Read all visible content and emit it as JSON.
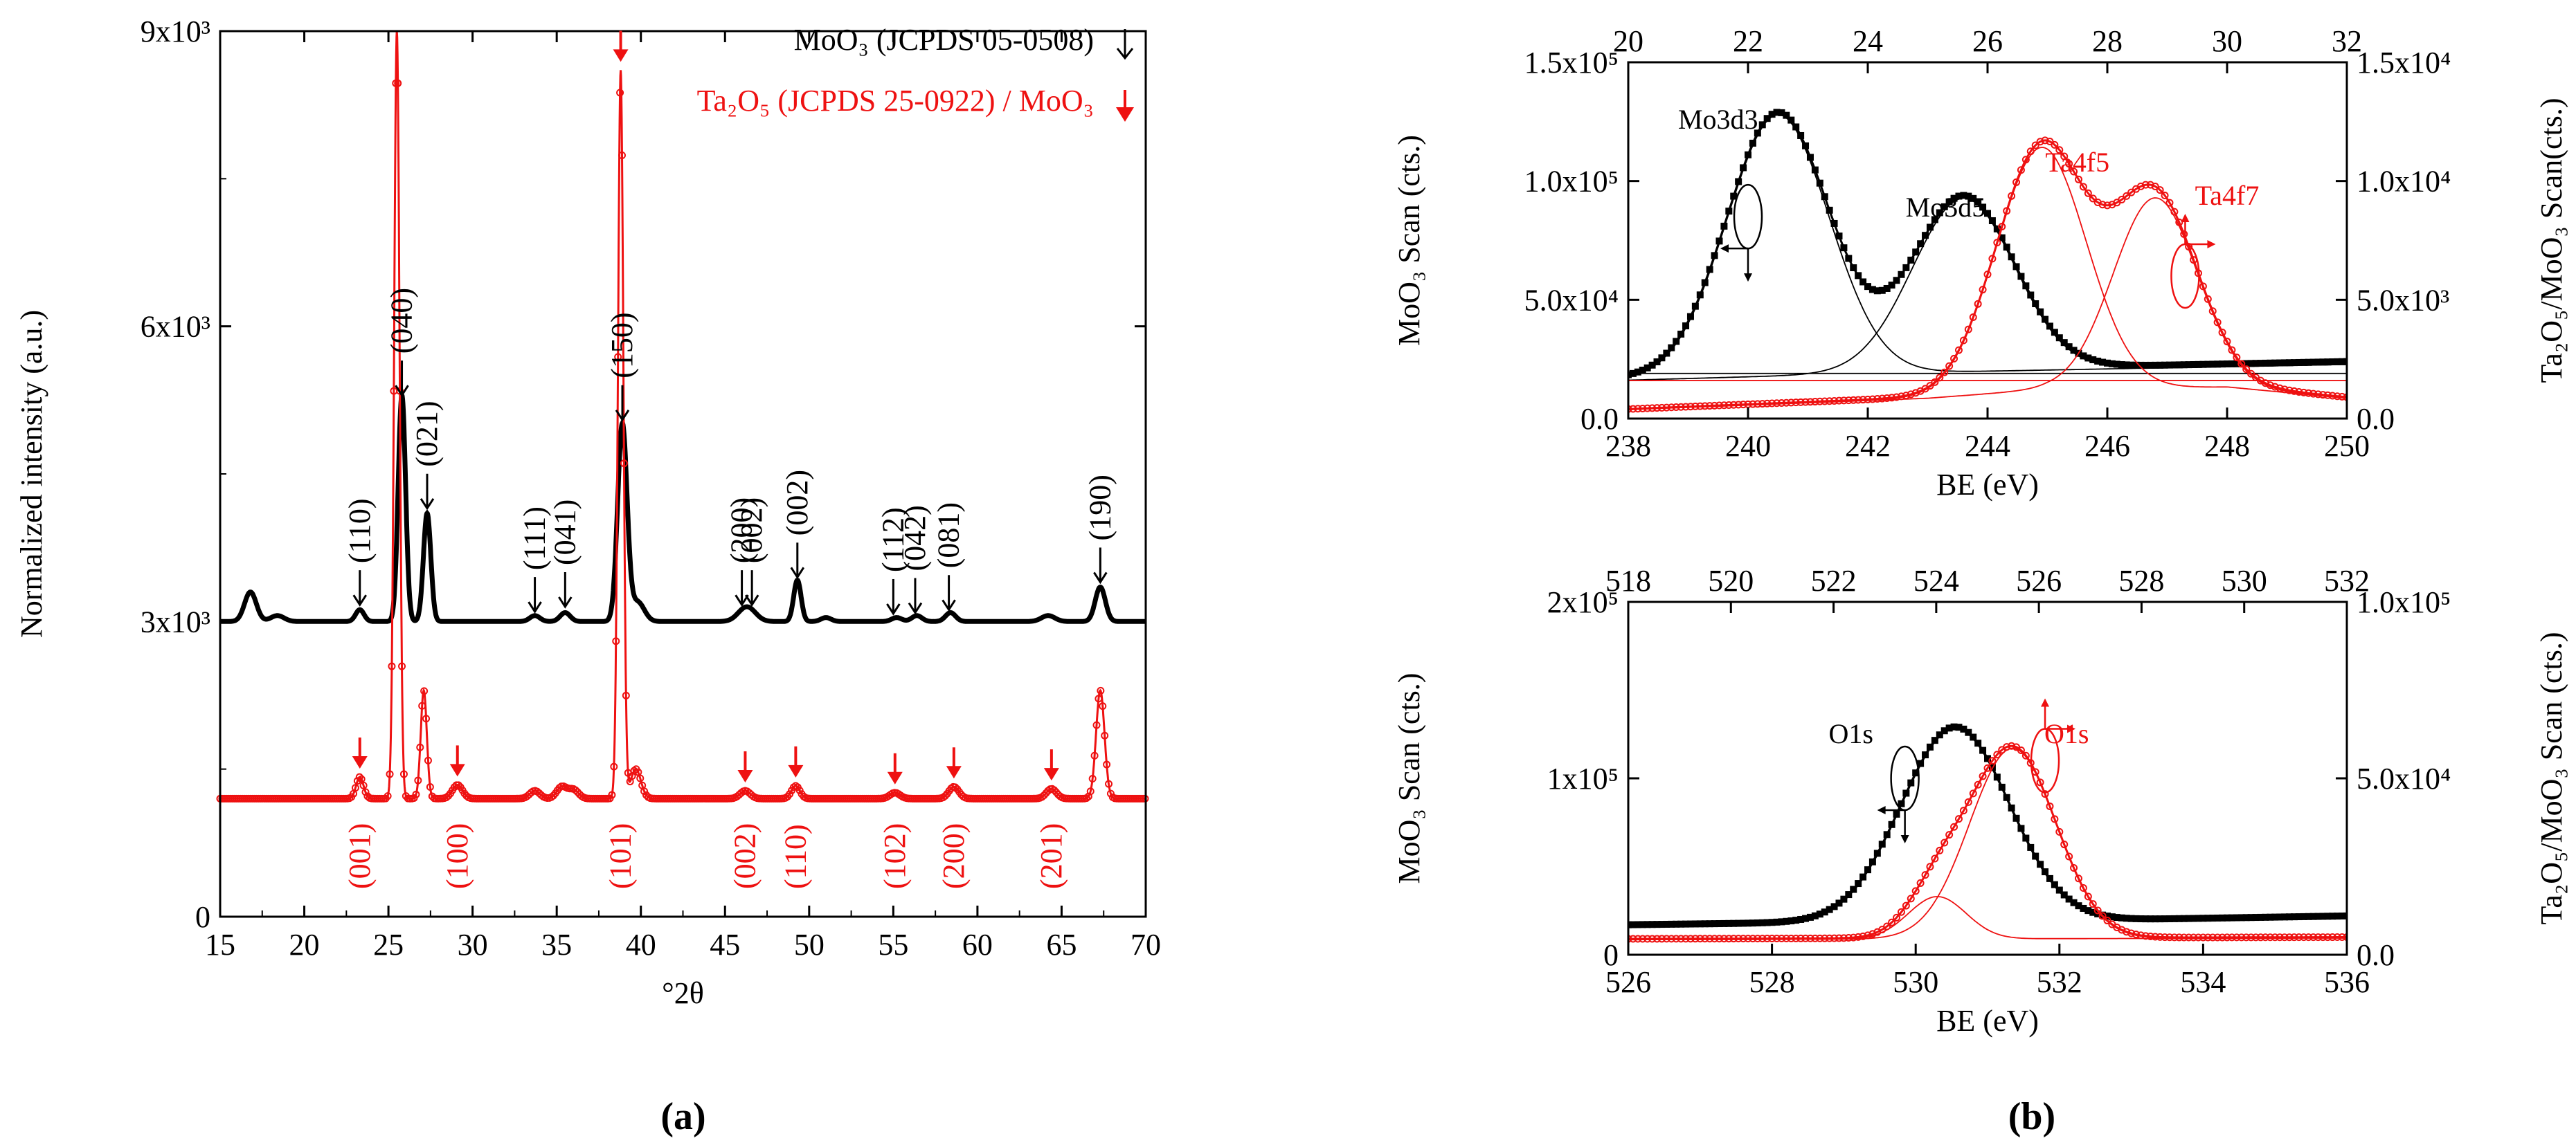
{
  "colors": {
    "black": "#000000",
    "red": "#ee1111"
  },
  "chart_data": [
    {
      "id": "xrd",
      "panel_label": "(a)",
      "type": "line",
      "xlabel": "°2θ",
      "ylabel": "Normalized intensity (a.u.)",
      "xlim": [
        15,
        70
      ],
      "ylim": [
        0,
        9000
      ],
      "xticks": [
        15,
        20,
        25,
        30,
        35,
        40,
        45,
        50,
        55,
        60,
        65,
        70
      ],
      "yticks": [
        {
          "v": 0,
          "t": "0"
        },
        {
          "v": 3000,
          "t": "3x10³"
        },
        {
          "v": 6000,
          "t": "6x10³"
        },
        {
          "v": 9000,
          "t": "9x10³"
        }
      ],
      "legend": [
        {
          "label": "MoO₃ (JCPDS 05-0508)",
          "color": "#000000",
          "marker": "open arrow"
        },
        {
          "label": "Ta₂O₅ (JCPDS 25-0922) / MoO₃",
          "color": "#ee1111",
          "marker": "filled arrow"
        }
      ],
      "series": [
        {
          "name": "MoO3",
          "color": "#000000",
          "baseline": 3000,
          "peaks": [
            [
              16.8,
              300,
              0.35
            ],
            [
              18.4,
              60,
              0.4
            ],
            [
              23.3,
              120,
              0.25
            ],
            [
              25.8,
              2300,
              0.22
            ],
            [
              27.3,
              1100,
              0.22
            ],
            [
              33.7,
              60,
              0.3
            ],
            [
              35.5,
              90,
              0.3
            ],
            [
              38.9,
              2000,
              0.28
            ],
            [
              39.8,
              200,
              0.4
            ],
            [
              46.3,
              150,
              0.5
            ],
            [
              49.3,
              420,
              0.22
            ],
            [
              51.0,
              40,
              0.3
            ],
            [
              55.2,
              40,
              0.3
            ],
            [
              56.4,
              60,
              0.3
            ],
            [
              58.4,
              90,
              0.3
            ],
            [
              64.2,
              60,
              0.4
            ],
            [
              67.3,
              350,
              0.3
            ]
          ]
        },
        {
          "name": "Ta2O5/MoO3",
          "color": "#ee1111",
          "baseline": 1200,
          "peaks": [
            [
              23.3,
              220,
              0.22
            ],
            [
              25.5,
              7800,
              0.16
            ],
            [
              27.1,
              1100,
              0.18
            ],
            [
              29.1,
              140,
              0.3
            ],
            [
              33.7,
              80,
              0.3
            ],
            [
              35.3,
              120,
              0.3
            ],
            [
              36.0,
              90,
              0.3
            ],
            [
              38.8,
              7400,
              0.16
            ],
            [
              39.7,
              300,
              0.3
            ],
            [
              46.2,
              80,
              0.3
            ],
            [
              49.2,
              130,
              0.25
            ],
            [
              55.1,
              60,
              0.3
            ],
            [
              58.6,
              120,
              0.3
            ],
            [
              64.4,
              100,
              0.3
            ],
            [
              67.3,
              1100,
              0.25
            ]
          ]
        }
      ],
      "moo3_annotations": [
        {
          "label": "(110)",
          "x": 23.3,
          "y": 3170
        },
        {
          "label": "(040)",
          "x": 25.8,
          "y": 5300
        },
        {
          "label": "(021)",
          "x": 27.3,
          "y": 4150
        },
        {
          "label": "(111)",
          "x": 33.7,
          "y": 3100
        },
        {
          "label": "(041)",
          "x": 35.5,
          "y": 3150
        },
        {
          "label": "(150)",
          "x": 38.9,
          "y": 5050
        },
        {
          "label": "(200)",
          "x": 46.0,
          "y": 3170
        },
        {
          "label": "(002)",
          "x": 46.6,
          "y": 3170
        },
        {
          "label": "(002)",
          "x": 49.3,
          "y": 3450
        },
        {
          "label": "(112)",
          "x": 55.0,
          "y": 3080
        },
        {
          "label": "(042)",
          "x": 56.3,
          "y": 3090
        },
        {
          "label": "(081)",
          "x": 58.3,
          "y": 3120
        },
        {
          "label": "(190)",
          "x": 67.3,
          "y": 3400
        }
      ],
      "ta2o5_annotations": [
        {
          "label": "(001)",
          "x": 23.3
        },
        {
          "label": "(100)",
          "x": 29.1
        },
        {
          "label": "(101)",
          "x": 38.8
        },
        {
          "label": "(002)",
          "x": 46.2
        },
        {
          "label": "(110)",
          "x": 49.2
        },
        {
          "label": "(102)",
          "x": 55.1
        },
        {
          "label": "(200)",
          "x": 58.6
        },
        {
          "label": "(201)",
          "x": 64.4
        }
      ]
    },
    {
      "id": "xps-mo-ta",
      "type": "scatter",
      "xlabel": "BE (eV)",
      "ylabel_left": "MoO₃ Scan (cts.)",
      "ylabel_right": "Ta₂O₅/MoO₃ Scan(cts.)",
      "xlim": [
        238,
        250
      ],
      "xticks": [
        238,
        240,
        242,
        244,
        246,
        248,
        250
      ],
      "xlim_top": [
        20,
        32
      ],
      "xticks_top": [
        20,
        22,
        24,
        26,
        28,
        30,
        32
      ],
      "ylim_left": [
        0,
        150000
      ],
      "yticks_left": [
        {
          "v": 0,
          "t": "0.0"
        },
        {
          "v": 50000,
          "t": "5.0x10⁴"
        },
        {
          "v": 100000,
          "t": "1.0x10⁵"
        },
        {
          "v": 150000,
          "t": "1.5x10⁵"
        }
      ],
      "ylim_right": [
        0,
        15000
      ],
      "yticks_right": [
        {
          "v": 0,
          "t": "0.0"
        },
        {
          "v": 5000,
          "t": "5.0x10³"
        },
        {
          "v": 10000,
          "t": "1.0x10⁴"
        },
        {
          "v": 15000,
          "t": "1.5x10⁴"
        }
      ],
      "labels": [
        {
          "text": "Mo3d3",
          "x": 239.5,
          "y": 122000,
          "color": "#000000"
        },
        {
          "text": "Mo3d5",
          "x": 243.3,
          "y": 85000,
          "color": "#000000"
        },
        {
          "text": "Ta4f5",
          "x": 245.5,
          "y": 104000,
          "color": "#ee1111"
        },
        {
          "text": "Ta4f7",
          "x": 248.0,
          "y": 90000,
          "color": "#ee1111"
        }
      ],
      "series": [
        {
          "name": "MoO3 Scan",
          "color": "#000000",
          "axis": "left",
          "marker": "square",
          "background": [
            [
              238,
              17000
            ],
            [
              242,
              20000
            ],
            [
              244,
              21000
            ],
            [
              250,
              24000
            ]
          ],
          "peaks": [
            [
              240.5,
              110000,
              0.85
            ],
            [
              243.6,
              73000,
              0.85
            ]
          ],
          "fit_lines": [
            [
              [
                238,
                19000
              ],
              [
                250,
                19000
              ]
            ]
          ]
        },
        {
          "name": "Ta2O5/MoO3 Scan",
          "color": "#ee1111",
          "axis": "right",
          "marker": "circle",
          "background": [
            [
              238,
              400
            ],
            [
              243,
              900
            ],
            [
              245,
              1300
            ],
            [
              248,
              1400
            ],
            [
              250,
              900
            ]
          ],
          "peaks": [
            [
              244.9,
              10200,
              0.75
            ],
            [
              246.8,
              8000,
              0.7
            ]
          ],
          "fit_lines": [
            [
              [
                238,
                1600
              ],
              [
                250,
                1600
              ]
            ]
          ]
        }
      ],
      "ellipses": [
        {
          "x": 240.0,
          "y": 85000,
          "color": "#000000",
          "dir": "left"
        },
        {
          "x": 247.3,
          "y": 60000,
          "color": "#ee1111",
          "dir": "right"
        }
      ]
    },
    {
      "id": "xps-o1s",
      "panel_label": "(b)",
      "type": "scatter",
      "xlabel": "BE (eV)",
      "ylabel_left": "MoO₃ Scan (cts.)",
      "ylabel_right": "Ta₂O₅/MoO₃ Scan (cts.)",
      "xlim": [
        526,
        536
      ],
      "xticks": [
        526,
        528,
        530,
        532,
        534,
        536
      ],
      "xlim_top": [
        518,
        532
      ],
      "xticks_top": [
        518,
        520,
        522,
        524,
        526,
        528,
        530,
        532
      ],
      "ylim_left": [
        0,
        200000
      ],
      "yticks_left": [
        {
          "v": 0,
          "t": "0"
        },
        {
          "v": 100000,
          "t": "1x10⁵"
        },
        {
          "v": 200000,
          "t": "2x10⁵"
        }
      ],
      "ylim_right": [
        0,
        100000
      ],
      "yticks_right": [
        {
          "v": 0,
          "t": "0.0"
        },
        {
          "v": 50000,
          "t": "5.0x10⁴"
        },
        {
          "v": 100000,
          "t": "1.0x10⁵"
        }
      ],
      "labels": [
        {
          "text": "O1s",
          "x": 529.1,
          "y": 120000,
          "color": "#000000"
        },
        {
          "text": "O1s",
          "x": 532.1,
          "y": 120000,
          "color": "#ee1111"
        }
      ],
      "series": [
        {
          "name": "MoO3 Scan",
          "color": "#000000",
          "axis": "left",
          "marker": "square",
          "background": [
            [
              526,
              17000
            ],
            [
              530,
              19000
            ],
            [
              533,
              20000
            ],
            [
              536,
              22000
            ]
          ],
          "peaks": [
            [
              530.55,
              110000,
              0.75
            ]
          ],
          "fit_lines": []
        },
        {
          "name": "Ta2O5/MoO3 Scan",
          "color": "#ee1111",
          "axis": "right",
          "marker": "circle",
          "background": [
            [
              526,
              4500
            ],
            [
              536,
              5000
            ]
          ],
          "peaks": [
            [
              531.35,
              54000,
              0.6
            ],
            [
              530.3,
              12000,
              0.4
            ]
          ],
          "fit_lines": []
        }
      ],
      "ellipses": [
        {
          "x": 529.85,
          "y": 100000,
          "color": "#000000",
          "dir": "left"
        },
        {
          "x": 531.8,
          "y": 110000,
          "color": "#ee1111",
          "dir": "right"
        }
      ]
    }
  ]
}
